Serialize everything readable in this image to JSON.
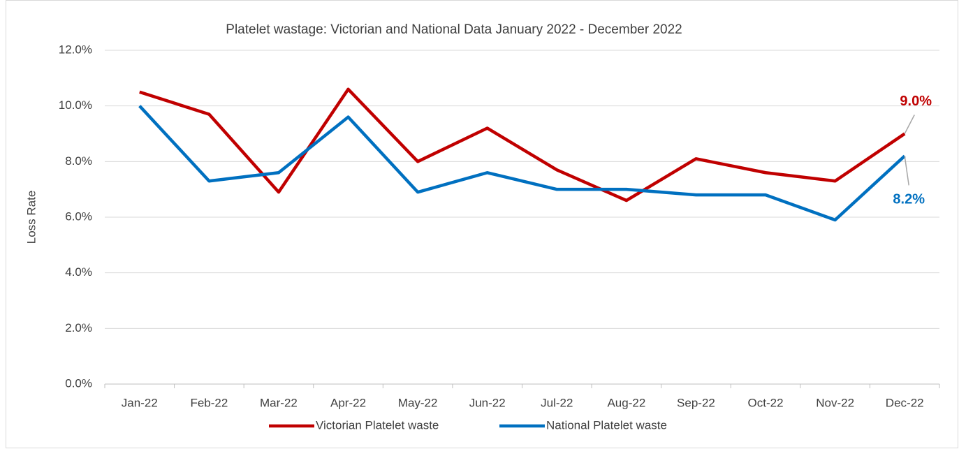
{
  "chart_data": {
    "type": "line",
    "title": "Platelet wastage: Victorian and National Data January 2022 - December 2022",
    "y_label": "Loss Rate",
    "categories": [
      "Jan-22",
      "Feb-22",
      "Mar-22",
      "Apr-22",
      "May-22",
      "Jun-22",
      "Jul-22",
      "Aug-22",
      "Sep-22",
      "Oct-22",
      "Nov-22",
      "Dec-22"
    ],
    "series": [
      {
        "name": "Victorian Platelet waste",
        "color": "#c00000",
        "values": [
          10.5,
          9.7,
          6.9,
          10.6,
          8.0,
          9.2,
          7.7,
          6.6,
          8.1,
          7.6,
          7.3,
          9.0
        ],
        "value_labels": [
          null,
          null,
          null,
          null,
          null,
          null,
          null,
          null,
          null,
          null,
          null,
          "9.0%"
        ]
      },
      {
        "name": "National Platelet waste",
        "color": "#0070c0",
        "values": [
          10.0,
          7.3,
          7.6,
          9.6,
          6.9,
          7.6,
          7.0,
          7.0,
          6.8,
          6.8,
          5.9,
          8.2
        ],
        "value_labels": [
          null,
          null,
          null,
          null,
          null,
          null,
          null,
          null,
          null,
          null,
          null,
          "8.2%"
        ]
      }
    ],
    "ylim": [
      0,
      12
    ],
    "yticks": [
      {
        "value": 0,
        "label": "0.0%"
      },
      {
        "value": 2,
        "label": "2.0%"
      },
      {
        "value": 4,
        "label": "4.0%"
      },
      {
        "value": 6,
        "label": "6.0%"
      },
      {
        "value": 8,
        "label": "8.0%"
      },
      {
        "value": 10,
        "label": "10.0%"
      },
      {
        "value": 12,
        "label": "12.0%"
      }
    ],
    "grid": true,
    "legend": "bottom"
  }
}
